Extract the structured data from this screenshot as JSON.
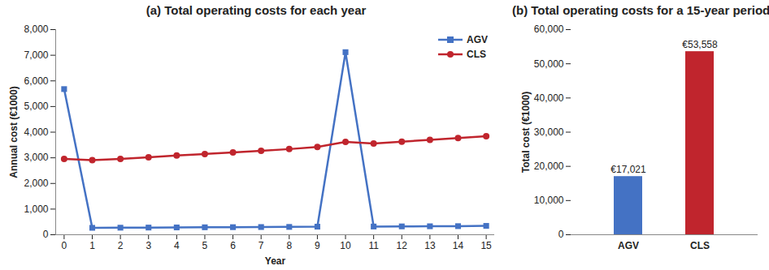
{
  "chart_data": [
    {
      "type": "line",
      "title": "(a) Total operating costs for each year",
      "x_label": "Year",
      "y_label": "Annual cost (€1000)",
      "x": [
        0,
        1,
        2,
        3,
        4,
        5,
        6,
        7,
        8,
        9,
        10,
        11,
        12,
        13,
        14,
        15
      ],
      "series": [
        {
          "name": "AGV",
          "color": "#4472c4",
          "marker": "square",
          "line_style": "solid",
          "values": [
            5680,
            270,
            275,
            280,
            285,
            290,
            295,
            300,
            305,
            315,
            7120,
            320,
            325,
            330,
            335,
            345
          ]
        },
        {
          "name": "CLS",
          "color": "#c0252d",
          "marker": "circle",
          "line_style": "solid",
          "values": [
            2960,
            2910,
            2960,
            3020,
            3090,
            3150,
            3210,
            3270,
            3340,
            3420,
            3620,
            3560,
            3630,
            3700,
            3770,
            3840
          ]
        }
      ],
      "xlim": [
        -0.3,
        15.3
      ],
      "xticks": [
        0,
        1,
        2,
        3,
        4,
        5,
        6,
        7,
        8,
        9,
        10,
        11,
        12,
        13,
        14,
        15
      ],
      "ylim": [
        0,
        8000
      ],
      "yticks": [
        0,
        {
          "value": 1000,
          "label": "1,000"
        },
        {
          "value": 2000,
          "label": "2,000"
        },
        {
          "value": 3000,
          "label": "3,000"
        },
        {
          "value": 4000,
          "label": "4,000"
        },
        {
          "value": 5000,
          "label": "5,000"
        },
        {
          "value": 6000,
          "label": "6,000"
        },
        {
          "value": 7000,
          "label": "7,000"
        },
        {
          "value": 8000,
          "label": "8,000"
        }
      ],
      "grid": false,
      "legend": "upper right"
    },
    {
      "type": "bar",
      "title": "(b) Total operating costs for a 15-year period",
      "y_label": "Total cost (€1000)",
      "categories": [
        "AGV",
        "CLS"
      ],
      "values": [
        17021,
        53558
      ],
      "value_labels": [
        "€17,021",
        "€53,558"
      ],
      "colors": [
        "#4472c4",
        "#c0252d"
      ],
      "ylim": [
        0,
        60000
      ],
      "yticks": [
        0,
        {
          "value": 10000,
          "label": "10,000"
        },
        {
          "value": 20000,
          "label": "20,000"
        },
        {
          "value": 30000,
          "label": "30,000"
        },
        {
          "value": 40000,
          "label": "40,000"
        },
        {
          "value": 50000,
          "label": "50,000"
        },
        {
          "value": 60000,
          "label": "60,000"
        }
      ],
      "grid": false,
      "data_labels": true
    }
  ]
}
